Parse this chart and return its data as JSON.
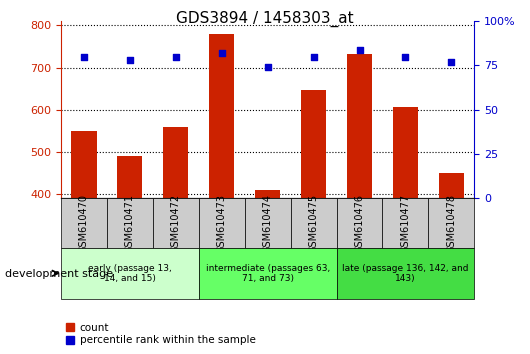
{
  "title": "GDS3894 / 1458303_at",
  "samples": [
    "GSM610470",
    "GSM610471",
    "GSM610472",
    "GSM610473",
    "GSM610474",
    "GSM610475",
    "GSM610476",
    "GSM610477",
    "GSM610478"
  ],
  "counts": [
    550,
    490,
    558,
    780,
    410,
    648,
    733,
    607,
    450
  ],
  "percentile_ranks": [
    80,
    78,
    80,
    82,
    74,
    80,
    84,
    80,
    77
  ],
  "ylim_left": [
    390,
    810
  ],
  "ylim_right": [
    0,
    100
  ],
  "yticks_left": [
    400,
    500,
    600,
    700,
    800
  ],
  "yticks_right": [
    0,
    25,
    50,
    75,
    100
  ],
  "bar_color": "#cc2200",
  "dot_color": "#0000cc",
  "grid_color": "#000000",
  "groups": [
    {
      "label": "early (passage 13,\n14, and 15)",
      "start": 0,
      "end": 3,
      "color": "#ccffcc"
    },
    {
      "label": "intermediate (passages 63,\n71, and 73)",
      "start": 3,
      "end": 6,
      "color": "#66ff66"
    },
    {
      "label": "late (passage 136, 142, and\n143)",
      "start": 6,
      "end": 9,
      "color": "#44dd44"
    }
  ],
  "dev_stage_label": "development stage",
  "legend_count_label": "count",
  "legend_pct_label": "percentile rank within the sample",
  "tick_bg_color": "#cccccc",
  "right_axis_color": "#0000cc",
  "left_axis_color": "#cc2200",
  "spine_color": "#000000"
}
